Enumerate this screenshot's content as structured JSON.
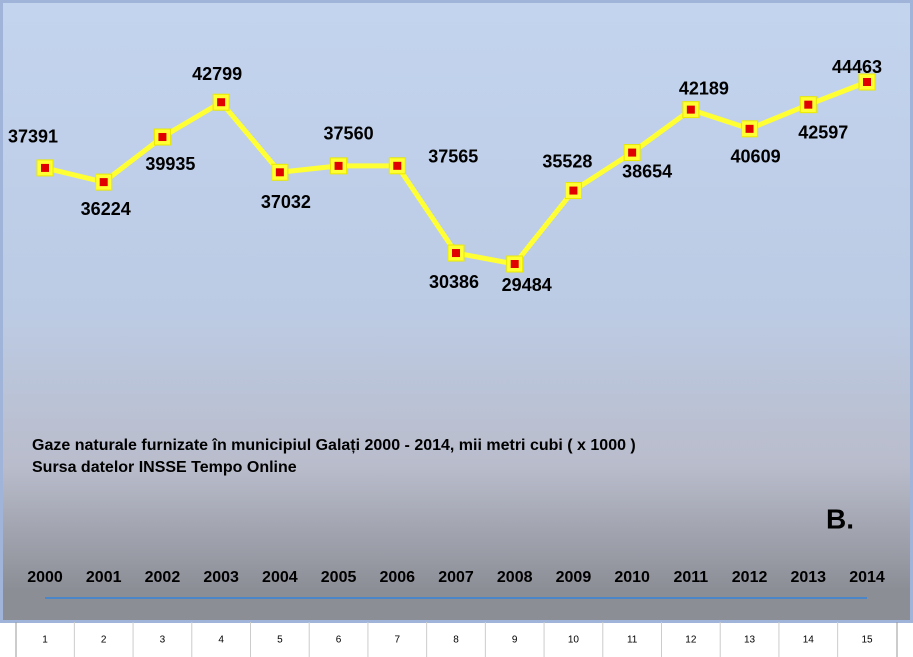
{
  "chart_data": {
    "type": "line",
    "title": "Gaze naturale furnizate în municipiul Galați 2000 - 2014, mii metri cubi ( x 1000 )",
    "subtitle": "Sursa datelor INSSE Tempo Online",
    "annotation": "B.",
    "categories": [
      "2000",
      "2001",
      "2002",
      "2003",
      "2004",
      "2005",
      "2006",
      "2007",
      "2008",
      "2009",
      "2010",
      "2011",
      "2012",
      "2013",
      "2014"
    ],
    "index_labels": [
      1,
      2,
      3,
      4,
      5,
      6,
      7,
      8,
      9,
      10,
      11,
      12,
      13,
      14,
      15
    ],
    "values": [
      37391,
      36224,
      39935,
      42799,
      37032,
      37560,
      37565,
      30386,
      29484,
      35528,
      38654,
      42189,
      40609,
      42597,
      44463
    ],
    "color": "#ffff33",
    "marker_color": "#e00000"
  }
}
